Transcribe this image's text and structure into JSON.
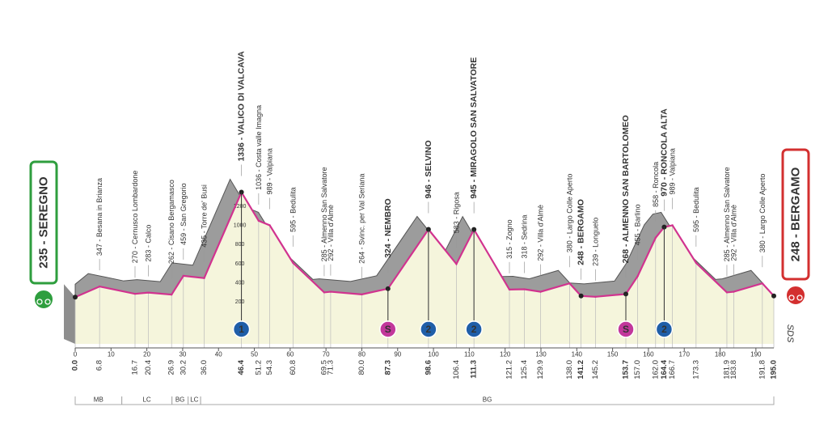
{
  "chart_data": {
    "type": "area",
    "x": [
      0.0,
      6.8,
      16.7,
      20.4,
      26.9,
      30.2,
      36.0,
      46.4,
      51.2,
      54.3,
      60.8,
      69.5,
      71.3,
      80.0,
      87.3,
      98.6,
      106.4,
      111.3,
      121.2,
      125.4,
      129.9,
      138.0,
      141.2,
      145.2,
      153.7,
      157.0,
      162.0,
      164.4,
      166.7,
      173.3,
      181.9,
      183.8,
      191.8,
      195.0
    ],
    "x_labels": [
      "0.0",
      "6.8",
      "16.7",
      "20.4",
      "26.9",
      "30.2",
      "36.0",
      "46.4",
      "51.2",
      "54.3",
      "60.8",
      "69.5",
      "71.3",
      "80.0",
      "87.3",
      "98.6",
      "106.4",
      "111.3",
      "121.2",
      "125.4",
      "129.9",
      "138.0",
      "141.2",
      "145.2",
      "153.7",
      "157.0",
      "162.0",
      "164.4",
      "166.7",
      "173.3",
      "181.9",
      "183.8",
      "191.8",
      "195.0"
    ],
    "values": [
      235,
      347,
      270,
      283,
      262,
      459,
      435,
      1336,
      1036,
      989,
      595,
      285,
      292,
      264,
      324,
      946,
      583,
      945,
      315,
      318,
      292,
      380,
      248,
      239,
      268,
      455,
      858,
      970,
      989,
      595,
      285,
      292,
      380,
      248
    ],
    "point_labels": [
      "235 - SEREGNO",
      "347 - Besana in Brianza",
      "270 - Cernusco Lombardone",
      "283 - Calco",
      "262 - Cisano Bergamasco",
      "459 - San Gregorio",
      "435 - Torre de' Busi",
      "1336 - VALICO DI VALCAVA",
      "1036 - Costa valle Imagna",
      "989 - Valpiana",
      "595 - Bedulita",
      "285 - Almenno San Salvatore",
      "292 - Villa d'Almè",
      "264 - Svinc. per Val Seriana",
      "324 - NEMBRO",
      "946 - SELVINO",
      "583 - Rigosa",
      "945 - MIRAGOLO SAN SALVATORE",
      "315 - Zogno",
      "318 - Sedrina",
      "292 - Villa d'Almè",
      "380 - Largo Colle Aperto",
      "248 - BERGAMO",
      "239 - Longuelo",
      "268 - ALMENNO SAN BARTOLOMEO",
      "455 - Barlino",
      "858 - Roncola",
      "970 - RONCOLA ALTA",
      "989 - Valpiana",
      "595 - Bedulita",
      "285 - Almenno San Salvatore",
      "292 - Villa d'Almè",
      "380 - Largo Colle Aperto",
      "248 - BERGAMO"
    ],
    "xlim": [
      0,
      195
    ],
    "xticks": [
      0,
      10,
      20,
      30,
      40,
      50,
      60,
      70,
      80,
      90,
      100,
      110,
      120,
      130,
      140,
      150,
      160,
      170,
      180,
      190
    ],
    "ylim": [
      0,
      1400
    ],
    "yticks": [
      200,
      400,
      600,
      800,
      1000,
      1200
    ],
    "line_color": "#d1338f",
    "climbs": [
      {
        "km": 46.4,
        "label": "1"
      },
      {
        "km": 98.6,
        "label": "2"
      },
      {
        "km": 111.3,
        "label": "2"
      },
      {
        "km": 164.4,
        "label": "2"
      }
    ],
    "climb_color": "#1f5ea8",
    "sprints": [
      {
        "km": 87.3,
        "label": "S"
      },
      {
        "km": 153.7,
        "label": "S"
      }
    ],
    "sprint_color": "#c2379b",
    "zones": [
      {
        "label": "MB",
        "from": 0,
        "to": 13
      },
      {
        "label": "LC",
        "from": 13,
        "to": 27
      },
      {
        "label": "BG",
        "from": 27,
        "to": 31.5
      },
      {
        "label": "LC",
        "from": 31.5,
        "to": 35
      },
      {
        "label": "BG",
        "from": 35,
        "to": 195
      }
    ],
    "logo": "SDS"
  }
}
